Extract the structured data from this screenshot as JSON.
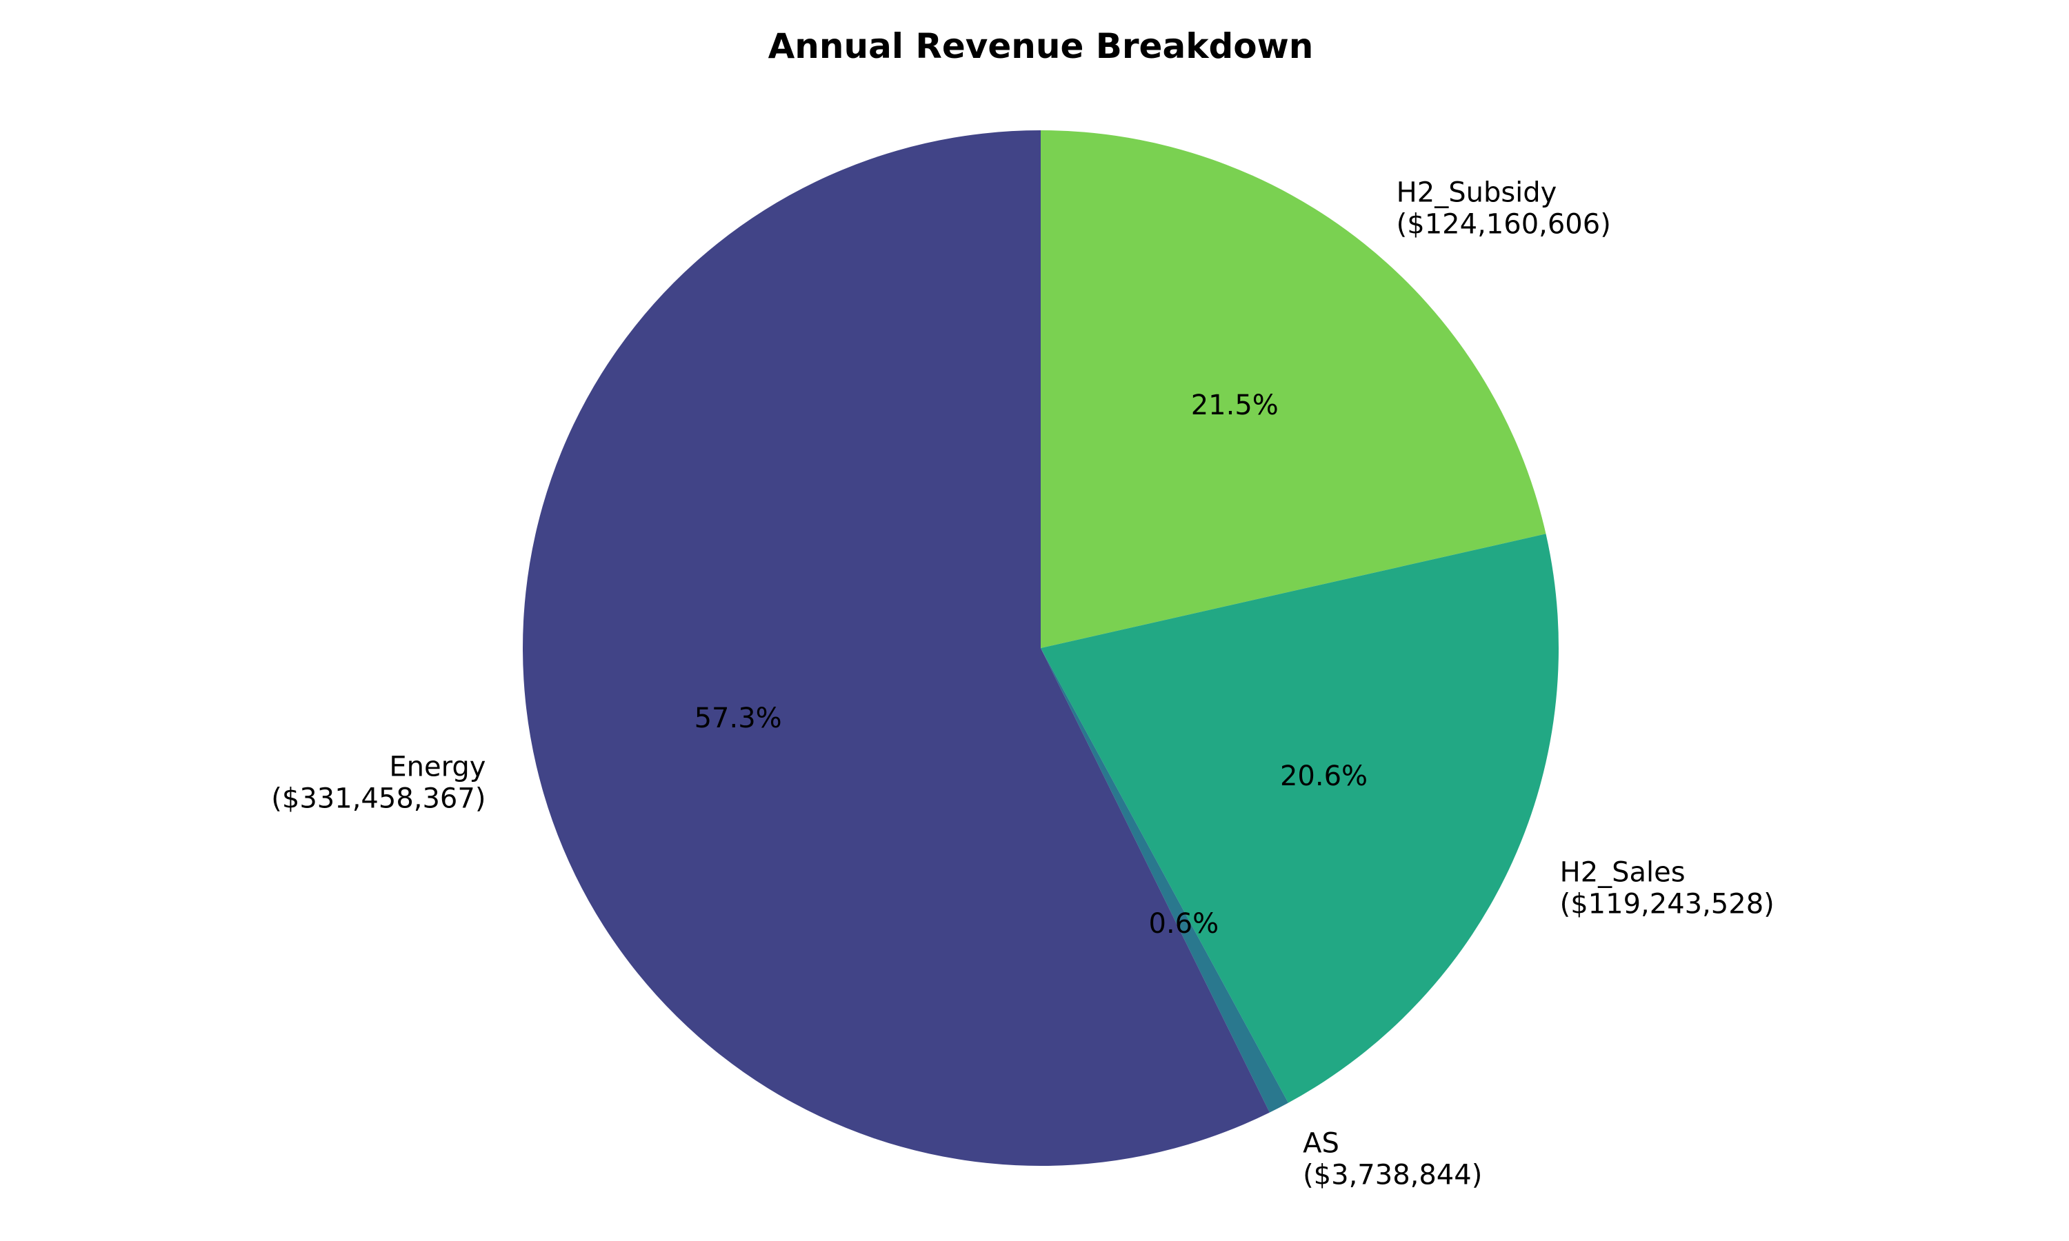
{
  "chart_data": {
    "type": "pie",
    "title": "Annual Revenue Breakdown",
    "start_angle_deg": 90,
    "direction": "clockwise",
    "slices": [
      {
        "label": "H2_Subsidy",
        "value_text": "($124,160,606)",
        "value": 124160606,
        "pct_text": "21.5%",
        "color": "#7ad151"
      },
      {
        "label": "H2_Sales",
        "value_text": "($119,243,528)",
        "value": 119243528,
        "pct_text": "20.6%",
        "color": "#22a884"
      },
      {
        "label": "AS",
        "value_text": "($3,738,844)",
        "value": 3738844,
        "pct_text": "0.6%",
        "color": "#2a788e"
      },
      {
        "label": "Energy",
        "value_text": "($331,458,367)",
        "value": 331458367,
        "pct_text": "57.3%",
        "color": "#414487"
      }
    ]
  }
}
